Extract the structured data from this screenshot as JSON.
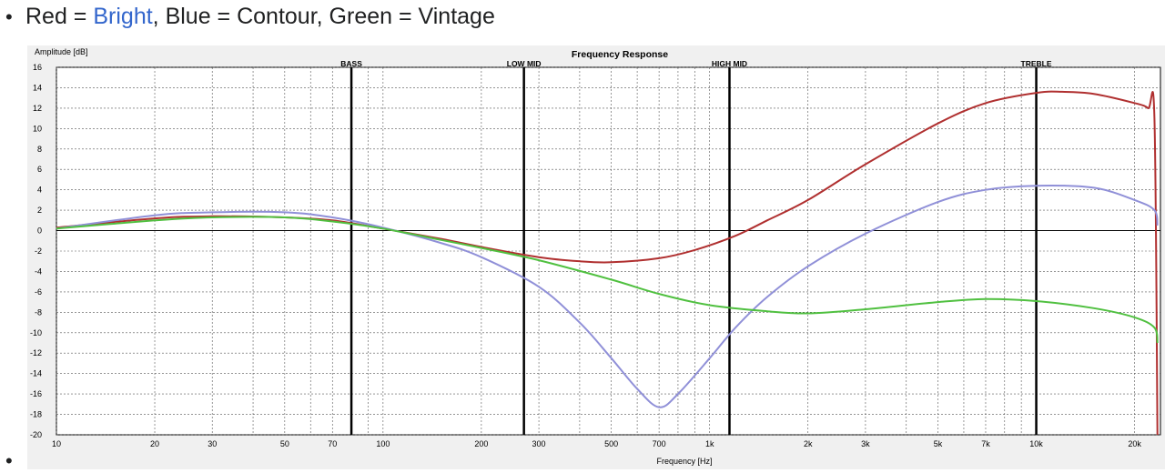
{
  "legend_line": {
    "bullet": "•",
    "prefix": "Red = ",
    "link_text": "Bright",
    "suffix": ", Blue = Contour, Green = Vintage"
  },
  "trailing_bullet": "•",
  "chart_data": {
    "type": "line",
    "title": "Frequency Response",
    "xlabel": "Frequency [Hz]",
    "ylabel": "Amplitude [dB]",
    "x_scale": "log",
    "xlim": [
      10,
      24000
    ],
    "ylim": [
      -20,
      16
    ],
    "grid": true,
    "x_ticks": [
      10,
      20,
      30,
      50,
      70,
      100,
      200,
      300,
      500,
      700,
      1000,
      2000,
      3000,
      5000,
      7000,
      10000,
      20000
    ],
    "x_tick_labels": [
      "10",
      "20",
      "30",
      "50",
      "70",
      "100",
      "200",
      "300",
      "500",
      "700",
      "1k",
      "2k",
      "3k",
      "5k",
      "7k",
      "10k",
      "20k"
    ],
    "y_ticks": [
      16,
      14,
      12,
      10,
      8,
      6,
      4,
      2,
      0,
      -2,
      -4,
      -6,
      -8,
      -10,
      -12,
      -14,
      -16,
      -18,
      -20
    ],
    "bands": [
      {
        "label": "BASS",
        "x": 80
      },
      {
        "label": "LOW MID",
        "x": 270
      },
      {
        "label": "HIGH MID",
        "x": 1150
      },
      {
        "label": "TREBLE",
        "x": 10000
      }
    ],
    "series": [
      {
        "color": "#b03030",
        "points": [
          [
            10,
            0.3
          ],
          [
            20,
            1.2
          ],
          [
            30,
            1.4
          ],
          [
            50,
            1.3
          ],
          [
            70,
            1.0
          ],
          [
            100,
            0.2
          ],
          [
            150,
            -0.8
          ],
          [
            200,
            -1.6
          ],
          [
            300,
            -2.6
          ],
          [
            400,
            -3.0
          ],
          [
            500,
            -3.1
          ],
          [
            700,
            -2.7
          ],
          [
            900,
            -1.9
          ],
          [
            1200,
            -0.5
          ],
          [
            1500,
            1.0
          ],
          [
            2000,
            3.0
          ],
          [
            3000,
            6.5
          ],
          [
            5000,
            10.5
          ],
          [
            7000,
            12.5
          ],
          [
            10000,
            13.5
          ],
          [
            12000,
            13.6
          ],
          [
            15000,
            13.4
          ],
          [
            20000,
            12.5
          ],
          [
            22000,
            12.0
          ],
          [
            23000,
            11.0
          ],
          [
            23500,
            -20
          ]
        ]
      },
      {
        "color": "#9090d8",
        "points": [
          [
            10,
            0.2
          ],
          [
            20,
            1.5
          ],
          [
            30,
            1.8
          ],
          [
            50,
            1.8
          ],
          [
            70,
            1.3
          ],
          [
            100,
            0.3
          ],
          [
            150,
            -1.2
          ],
          [
            200,
            -2.6
          ],
          [
            300,
            -5.5
          ],
          [
            400,
            -9.0
          ],
          [
            500,
            -12.5
          ],
          [
            600,
            -15.5
          ],
          [
            700,
            -17.3
          ],
          [
            800,
            -16.0
          ],
          [
            1000,
            -12.5
          ],
          [
            1200,
            -9.5
          ],
          [
            1500,
            -6.5
          ],
          [
            2000,
            -3.5
          ],
          [
            3000,
            -0.3
          ],
          [
            5000,
            2.8
          ],
          [
            7000,
            4.0
          ],
          [
            10000,
            4.4
          ],
          [
            15000,
            4.2
          ],
          [
            20000,
            3.0
          ],
          [
            23000,
            2.0
          ],
          [
            23500,
            0.5
          ]
        ]
      },
      {
        "color": "#50c040",
        "points": [
          [
            10,
            0.2
          ],
          [
            20,
            1.0
          ],
          [
            30,
            1.3
          ],
          [
            50,
            1.3
          ],
          [
            70,
            0.9
          ],
          [
            100,
            0.2
          ],
          [
            150,
            -0.9
          ],
          [
            200,
            -1.7
          ],
          [
            300,
            -2.9
          ],
          [
            500,
            -4.8
          ],
          [
            700,
            -6.2
          ],
          [
            1000,
            -7.3
          ],
          [
            1500,
            -7.9
          ],
          [
            2000,
            -8.1
          ],
          [
            3000,
            -7.7
          ],
          [
            5000,
            -7.0
          ],
          [
            7000,
            -6.7
          ],
          [
            10000,
            -6.9
          ],
          [
            15000,
            -7.6
          ],
          [
            20000,
            -8.5
          ],
          [
            23000,
            -9.5
          ],
          [
            23500,
            -11.0
          ]
        ]
      }
    ]
  }
}
